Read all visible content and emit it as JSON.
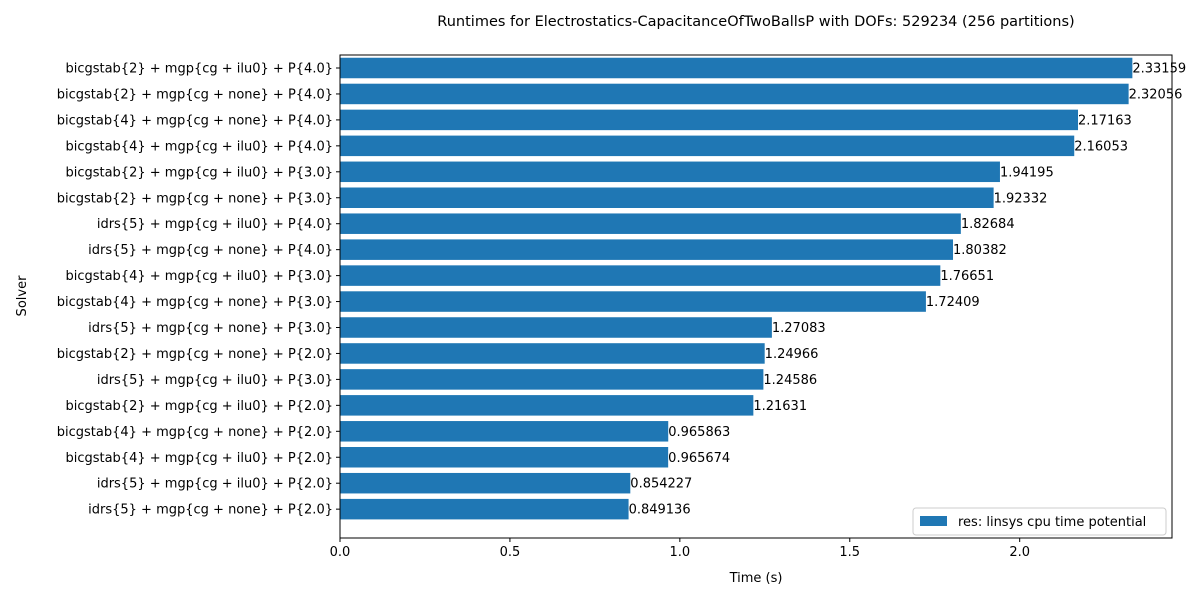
{
  "chart_data": {
    "type": "bar",
    "orientation": "horizontal",
    "title": "Runtimes for Electrostatics-CapacitanceOfTwoBallsP with DOFs: 529234 (256 partitions)",
    "xlabel": "Time (s)",
    "ylabel": "Solver",
    "xlim": [
      0.0,
      2.4482
    ],
    "xticks": [
      0.0,
      0.5,
      1.0,
      1.5,
      2.0
    ],
    "xtick_labels": [
      "0.0",
      "0.5",
      "1.0",
      "1.5",
      "2.0"
    ],
    "grid": false,
    "legend_position": "lower-right",
    "bar_color": "#1f77b4",
    "categories": [
      "bicgstab{2} + mgp{cg + ilu0} + P{4.0}",
      "bicgstab{2} + mgp{cg + none} + P{4.0}",
      "bicgstab{4} + mgp{cg + none} + P{4.0}",
      "bicgstab{4} + mgp{cg + ilu0} + P{4.0}",
      "bicgstab{2} + mgp{cg + ilu0} + P{3.0}",
      "bicgstab{2} + mgp{cg + none} + P{3.0}",
      "idrs{5} + mgp{cg + ilu0} + P{4.0}",
      "idrs{5} + mgp{cg + none} + P{4.0}",
      "bicgstab{4} + mgp{cg + ilu0} + P{3.0}",
      "bicgstab{4} + mgp{cg + none} + P{3.0}",
      "idrs{5} + mgp{cg + none} + P{3.0}",
      "bicgstab{2} + mgp{cg + none} + P{2.0}",
      "idrs{5} + mgp{cg + ilu0} + P{3.0}",
      "bicgstab{2} + mgp{cg + ilu0} + P{2.0}",
      "bicgstab{4} + mgp{cg + none} + P{2.0}",
      "bicgstab{4} + mgp{cg + ilu0} + P{2.0}",
      "idrs{5} + mgp{cg + ilu0} + P{2.0}",
      "idrs{5} + mgp{cg + none} + P{2.0}"
    ],
    "series": [
      {
        "name": "res: linsys cpu time potential",
        "values": [
          2.33159,
          2.32056,
          2.17163,
          2.16053,
          1.94195,
          1.92332,
          1.82684,
          1.80382,
          1.76651,
          1.72409,
          1.27083,
          1.24966,
          1.24586,
          1.21631,
          0.965863,
          0.965674,
          0.854227,
          0.849136
        ],
        "value_labels": [
          "2.33159",
          "2.32056",
          "2.17163",
          "2.16053",
          "1.94195",
          "1.92332",
          "1.82684",
          "1.80382",
          "1.76651",
          "1.72409",
          "1.27083",
          "1.24966",
          "1.24586",
          "1.21631",
          "0.965863",
          "0.965674",
          "0.854227",
          "0.849136"
        ]
      }
    ]
  }
}
